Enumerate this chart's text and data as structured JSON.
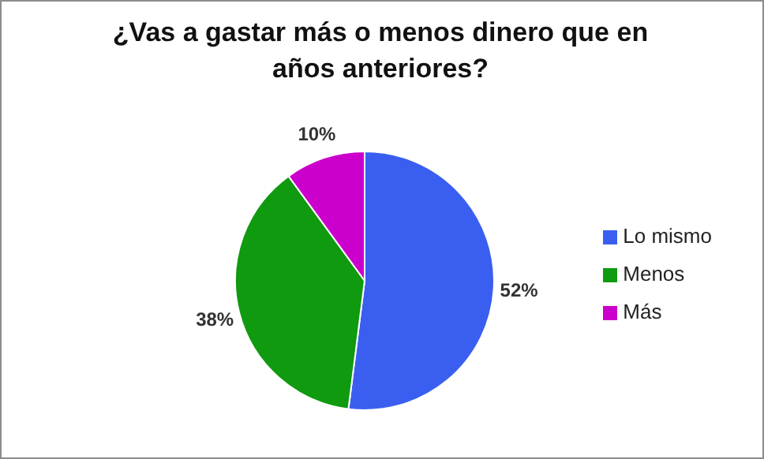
{
  "chart_data": {
    "type": "pie",
    "title": "¿Vas a gastar más o menos dinero que en años anteriores?",
    "categories": [
      "Lo mismo",
      "Menos",
      "Más"
    ],
    "values": [
      52,
      38,
      10
    ],
    "colors": [
      "#3a5ff0",
      "#0f9a0f",
      "#cc00cc"
    ],
    "value_labels": [
      "52%",
      "38%",
      "10%"
    ],
    "legend": "right"
  }
}
